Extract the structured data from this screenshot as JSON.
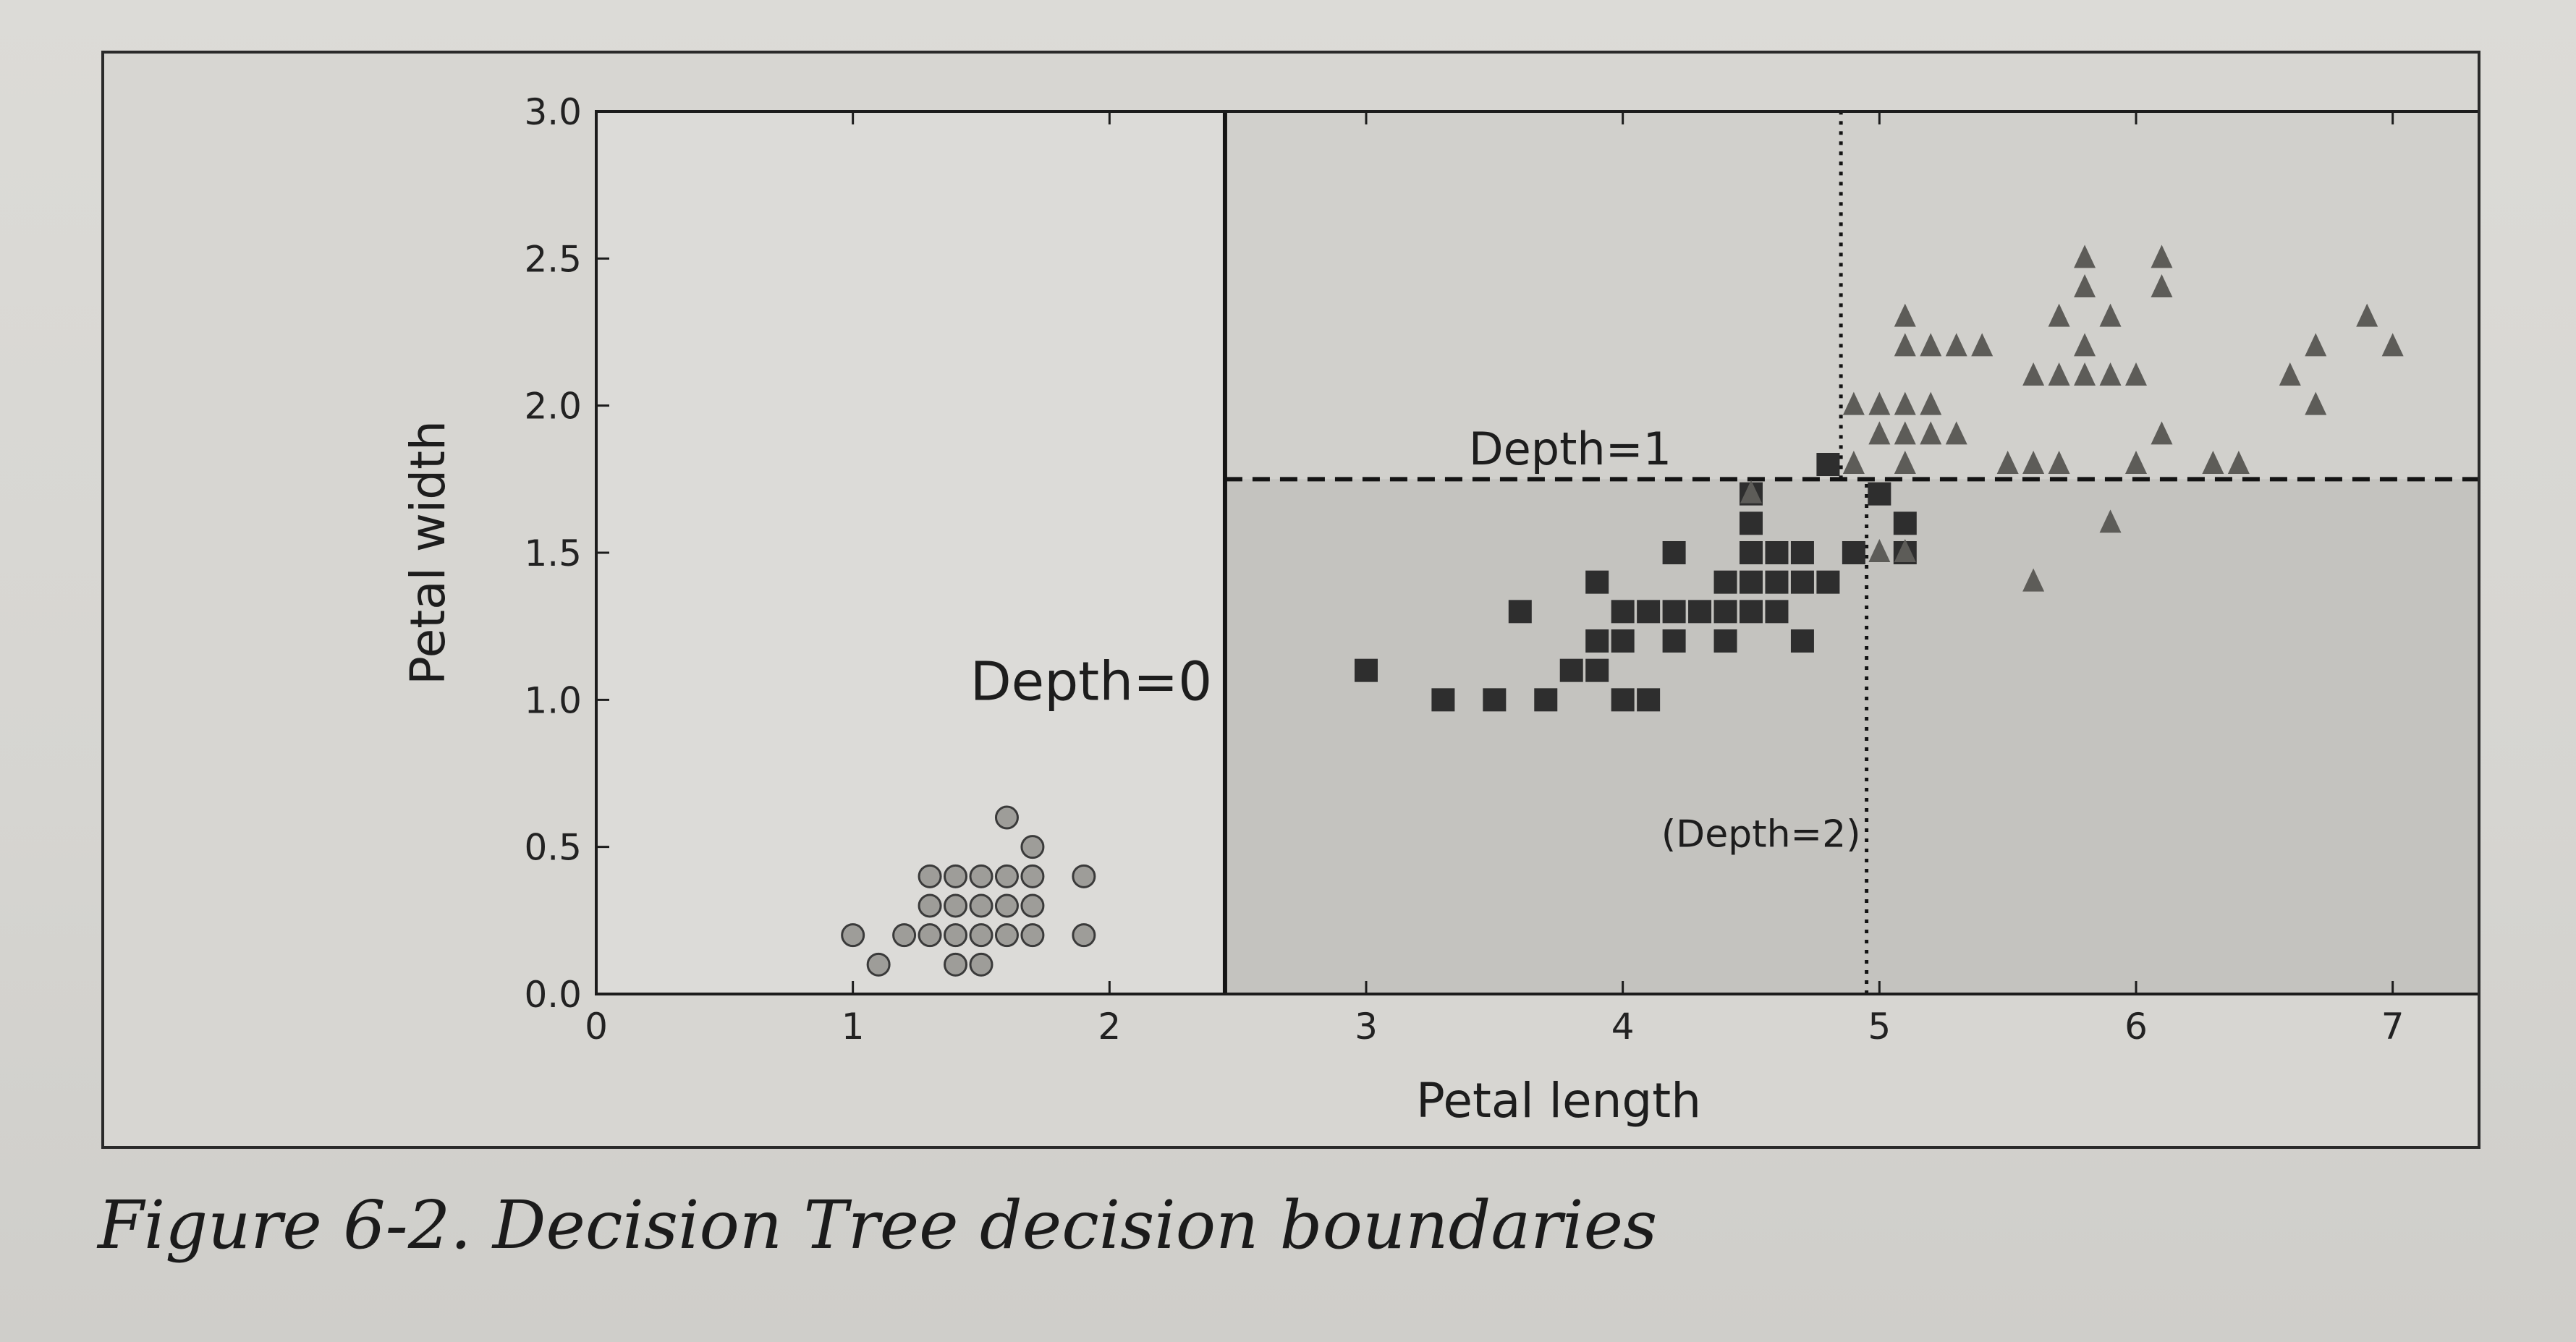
{
  "caption": "Figure 6-2. Decision Tree decision boundaries",
  "chart_data": {
    "type": "scatter",
    "title": "",
    "xlabel": "Petal length",
    "ylabel": "Petal width",
    "xlim": [
      0,
      7.5
    ],
    "ylim": [
      0,
      3.0
    ],
    "xticks": [
      "0",
      "1",
      "2",
      "3",
      "4",
      "5",
      "6",
      "7"
    ],
    "yticks": [
      "0.0",
      "0.5",
      "1.0",
      "1.5",
      "2.0",
      "2.5",
      "3.0"
    ],
    "grid": false,
    "legend": "none",
    "regions": [
      {
        "x": [
          0,
          2.45
        ],
        "y": [
          0,
          3.0
        ],
        "color": "#dcdbd8"
      },
      {
        "x": [
          2.45,
          7.5
        ],
        "y": [
          1.75,
          3.0
        ],
        "color": "#d1d0cc"
      },
      {
        "x": [
          2.45,
          7.5
        ],
        "y": [
          0,
          1.75
        ],
        "color": "#c4c3bf"
      }
    ],
    "boundaries": [
      {
        "label": "Depth=0",
        "orientation": "vertical",
        "value": 2.45,
        "style": "solid"
      },
      {
        "label": "Depth=1",
        "orientation": "horizontal",
        "value": 1.75,
        "x_from": 2.45,
        "style": "dashed"
      },
      {
        "label": "(Depth=2)",
        "orientation": "vertical",
        "value": 4.95,
        "y_to": 1.75,
        "style": "dotted"
      },
      {
        "label": "",
        "orientation": "vertical",
        "value": 4.85,
        "y_from": 1.75,
        "style": "dotted"
      }
    ],
    "annotations": [
      {
        "text": "Depth=0",
        "x": 2.4,
        "y": 1.0
      },
      {
        "text": "Depth=1",
        "x": 3.4,
        "y": 1.8
      },
      {
        "text": "(Depth=2)",
        "x": 4.15,
        "y": 0.5
      }
    ],
    "series": [
      {
        "marker": "circle",
        "color": "#9e9d99",
        "points": [
          [
            1.0,
            0.2
          ],
          [
            1.1,
            0.1
          ],
          [
            1.2,
            0.2
          ],
          [
            1.3,
            0.2
          ],
          [
            1.3,
            0.3
          ],
          [
            1.3,
            0.4
          ],
          [
            1.4,
            0.1
          ],
          [
            1.4,
            0.2
          ],
          [
            1.4,
            0.3
          ],
          [
            1.5,
            0.1
          ],
          [
            1.5,
            0.2
          ],
          [
            1.5,
            0.3
          ],
          [
            1.5,
            0.4
          ],
          [
            1.6,
            0.2
          ],
          [
            1.6,
            0.4
          ],
          [
            1.6,
            0.6
          ],
          [
            1.7,
            0.2
          ],
          [
            1.7,
            0.3
          ],
          [
            1.7,
            0.4
          ],
          [
            1.7,
            0.5
          ],
          [
            1.9,
            0.2
          ],
          [
            1.9,
            0.4
          ],
          [
            1.4,
            0.4
          ],
          [
            1.6,
            0.3
          ]
        ]
      },
      {
        "marker": "square",
        "color": "#2e2e2e",
        "points": [
          [
            3.0,
            1.1
          ],
          [
            3.3,
            1.0
          ],
          [
            3.5,
            1.0
          ],
          [
            3.7,
            1.0
          ],
          [
            3.6,
            1.3
          ],
          [
            3.8,
            1.1
          ],
          [
            3.9,
            1.1
          ],
          [
            3.9,
            1.2
          ],
          [
            3.9,
            1.4
          ],
          [
            4.0,
            1.0
          ],
          [
            4.0,
            1.2
          ],
          [
            4.0,
            1.3
          ],
          [
            4.1,
            1.0
          ],
          [
            4.1,
            1.3
          ],
          [
            4.2,
            1.2
          ],
          [
            4.2,
            1.3
          ],
          [
            4.2,
            1.5
          ],
          [
            4.3,
            1.3
          ],
          [
            4.4,
            1.2
          ],
          [
            4.4,
            1.3
          ],
          [
            4.4,
            1.4
          ],
          [
            4.5,
            1.3
          ],
          [
            4.5,
            1.4
          ],
          [
            4.5,
            1.5
          ],
          [
            4.5,
            1.6
          ],
          [
            4.6,
            1.3
          ],
          [
            4.6,
            1.4
          ],
          [
            4.6,
            1.5
          ],
          [
            4.7,
            1.2
          ],
          [
            4.7,
            1.4
          ],
          [
            4.7,
            1.5
          ],
          [
            4.8,
            1.4
          ],
          [
            4.8,
            1.8
          ],
          [
            4.9,
            1.5
          ],
          [
            5.0,
            1.7
          ],
          [
            5.1,
            1.6
          ],
          [
            5.1,
            1.5
          ],
          [
            4.5,
            1.7
          ]
        ]
      },
      {
        "marker": "triangle",
        "color": "#5d5c58",
        "points": [
          [
            4.5,
            1.7
          ],
          [
            4.9,
            1.8
          ],
          [
            4.9,
            2.0
          ],
          [
            5.0,
            2.0
          ],
          [
            5.0,
            1.5
          ],
          [
            5.1,
            1.5
          ],
          [
            5.0,
            1.9
          ],
          [
            5.1,
            1.9
          ],
          [
            5.1,
            2.0
          ],
          [
            5.2,
            2.0
          ],
          [
            5.1,
            2.3
          ],
          [
            5.1,
            2.2
          ],
          [
            5.2,
            2.2
          ],
          [
            5.3,
            2.2
          ],
          [
            5.4,
            2.2
          ],
          [
            5.2,
            1.9
          ],
          [
            5.1,
            1.8
          ],
          [
            5.3,
            1.9
          ],
          [
            5.6,
            1.8
          ],
          [
            5.7,
            1.8
          ],
          [
            5.5,
            1.8
          ],
          [
            5.6,
            2.1
          ],
          [
            5.7,
            2.1
          ],
          [
            5.8,
            2.1
          ],
          [
            5.9,
            2.1
          ],
          [
            5.7,
            2.3
          ],
          [
            5.8,
            2.2
          ],
          [
            5.8,
            2.4
          ],
          [
            5.9,
            2.3
          ],
          [
            5.8,
            2.5
          ],
          [
            6.0,
            1.8
          ],
          [
            5.6,
            1.4
          ],
          [
            6.0,
            2.1
          ],
          [
            6.1,
            2.4
          ],
          [
            6.1,
            2.5
          ],
          [
            6.1,
            1.9
          ],
          [
            6.3,
            1.8
          ],
          [
            6.4,
            1.8
          ],
          [
            6.6,
            2.1
          ],
          [
            6.7,
            2.0
          ],
          [
            6.7,
            2.2
          ],
          [
            6.9,
            2.3
          ],
          [
            7.0,
            2.2
          ],
          [
            5.9,
            1.6
          ]
        ]
      }
    ]
  }
}
